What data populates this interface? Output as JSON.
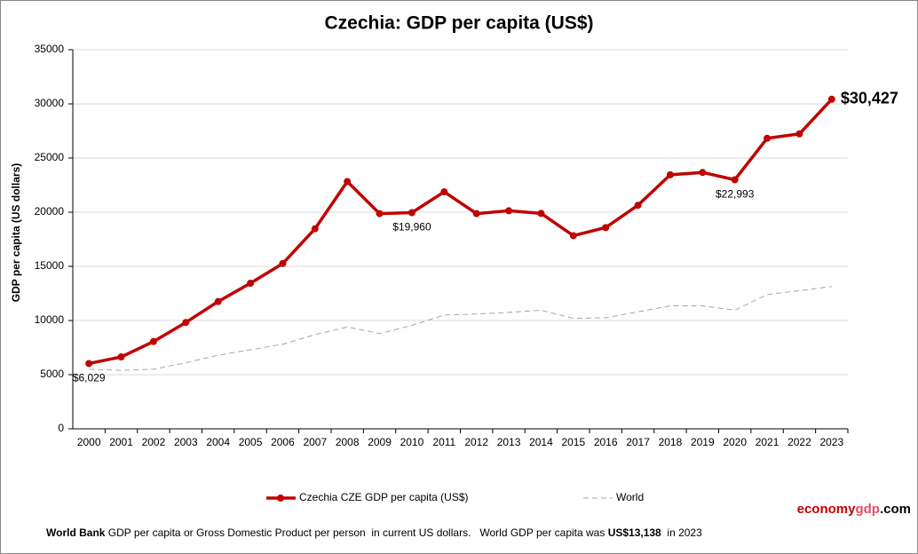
{
  "chart_data": {
    "type": "line",
    "title": "Czechia: GDP per capita (US$)",
    "y_label": "GDP per capita (US dollars)",
    "categories": [
      "2000",
      "2001",
      "2002",
      "2003",
      "2004",
      "2005",
      "2006",
      "2007",
      "2008",
      "2009",
      "2010",
      "2011",
      "2012",
      "2013",
      "2014",
      "2015",
      "2016",
      "2017",
      "2018",
      "2019",
      "2020",
      "2021",
      "2022",
      "2023"
    ],
    "series": [
      {
        "name": "Czechia CZE GDP per capita (US$)",
        "color": "#c00000",
        "values": [
          6029,
          6640,
          8060,
          9820,
          11750,
          13440,
          15260,
          18470,
          22830,
          19870,
          19960,
          21880,
          19870,
          20130,
          19890,
          17830,
          18580,
          20640,
          23450,
          23670,
          22993,
          26820,
          27230,
          30427
        ],
        "value_labels": [
          "$6,029",
          null,
          null,
          null,
          null,
          null,
          null,
          null,
          null,
          null,
          "$19,960",
          null,
          null,
          null,
          null,
          null,
          null,
          null,
          null,
          null,
          "$22,993",
          null,
          null,
          "$30,427"
        ]
      },
      {
        "name": "World",
        "color": "#a6a6a6",
        "dashed": true,
        "values": [
          5500,
          5400,
          5500,
          6100,
          6800,
          7300,
          7800,
          8700,
          9400,
          8800,
          9550,
          10500,
          10600,
          10750,
          10950,
          10200,
          10250,
          10800,
          11350,
          11350,
          10950,
          12400,
          12750,
          13138
        ]
      }
    ],
    "ylim": [
      0,
      35000
    ],
    "yticks": [
      0,
      5000,
      10000,
      15000,
      20000,
      25000,
      30000,
      35000
    ],
    "grid": true,
    "legend": "bottom",
    "brand": [
      "economy",
      "gdp",
      ".com"
    ],
    "footer": [
      "World Bank",
      " GDP per capita or Gross Domestic Product per person  in current US dollars.   World GDP per capita was ",
      "US$13,138",
      "  in 2023"
    ]
  }
}
